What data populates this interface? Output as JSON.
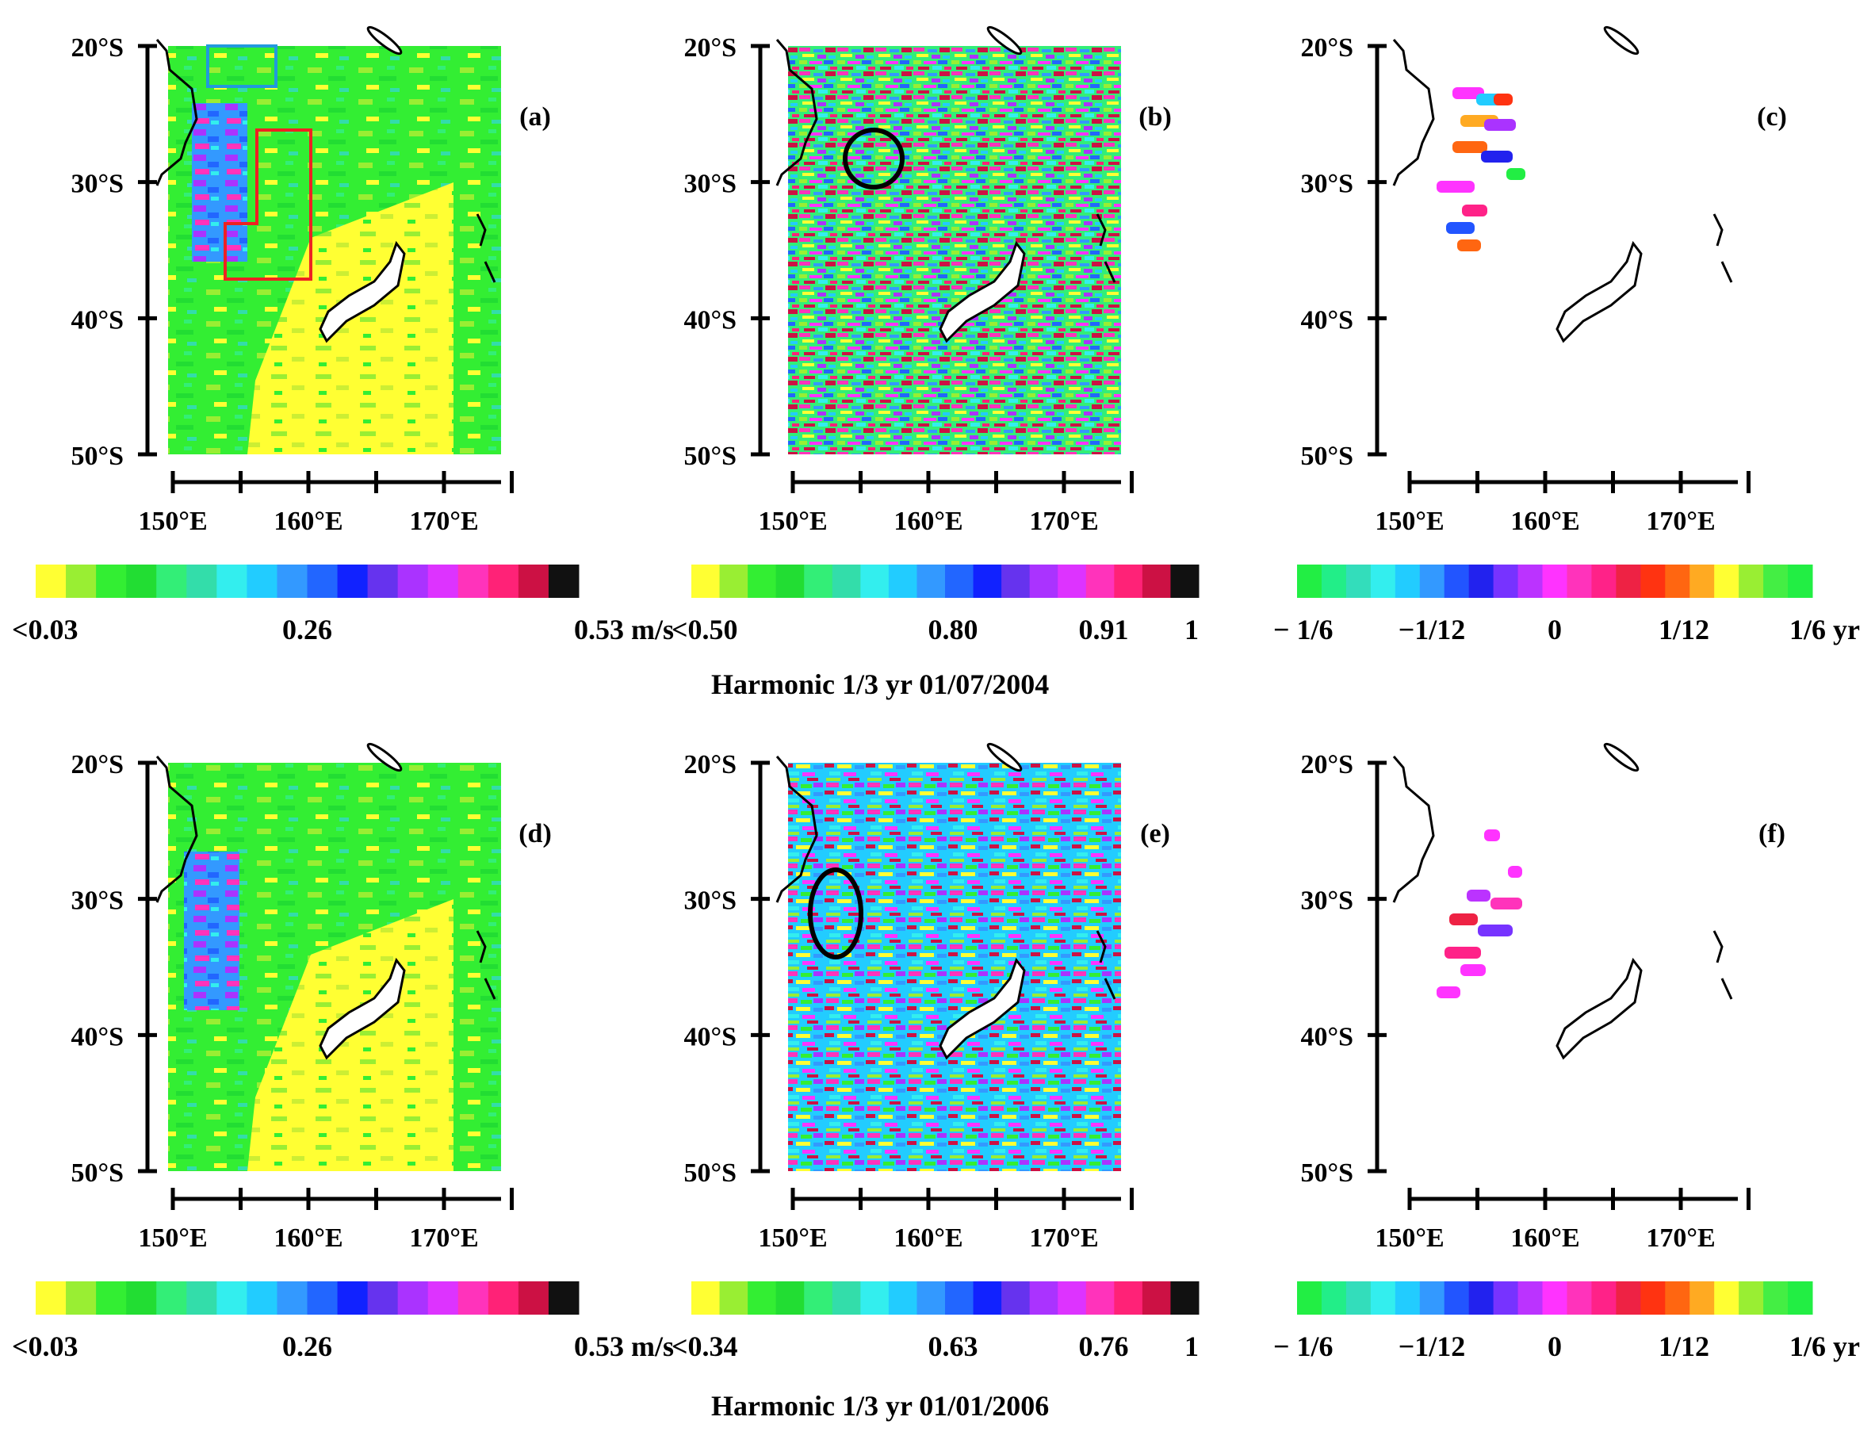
{
  "figure": {
    "rows": [
      {
        "caption": "Harmonic 1/3 yr    01/07/2004",
        "panels": [
          {
            "tag": "(a)",
            "type": "amplitude"
          },
          {
            "tag": "(b)",
            "type": "correlation"
          },
          {
            "tag": "(c)",
            "type": "phase"
          }
        ],
        "colorbars": [
          {
            "labels": [
              "<0.03",
              "0.26",
              "0.53 m/s"
            ]
          },
          {
            "labels": [
              "<0.50",
              "0.80",
              "0.91",
              "1"
            ]
          },
          {
            "labels": [
              "− 1/6",
              "−1/12",
              "0",
              "1/12",
              "1/6 yr"
            ]
          }
        ]
      },
      {
        "caption": "Harmonic 1/3 yr    01/01/2006",
        "panels": [
          {
            "tag": "(d)",
            "type": "amplitude"
          },
          {
            "tag": "(e)",
            "type": "correlation"
          },
          {
            "tag": "(f)",
            "type": "phase"
          }
        ],
        "colorbars": [
          {
            "labels": [
              "<0.03",
              "0.26",
              "0.53 m/s"
            ]
          },
          {
            "labels": [
              "<0.34",
              "0.63",
              "0.76",
              "1"
            ]
          },
          {
            "labels": [
              "− 1/6",
              "−1/12",
              "0",
              "1/12",
              "1/6 yr"
            ]
          }
        ]
      }
    ],
    "lat_ticks": [
      "20°S",
      "30°S",
      "40°S",
      "50°S"
    ],
    "lon_ticks": [
      "150°E",
      "160°E",
      "170°E"
    ],
    "palettes": {
      "amplitude": [
        "#ffff33",
        "#99ee33",
        "#33ee33",
        "#22dd33",
        "#33ee77",
        "#33ddaa",
        "#33eeee",
        "#22ccff",
        "#3399ff",
        "#2266ff",
        "#1122ff",
        "#6633ee",
        "#aa33ff",
        "#dd33ff",
        "#ff33bb",
        "#ff2277",
        "#cc1144",
        "#111111"
      ],
      "phase": [
        "#22ee44",
        "#22ee88",
        "#33ddbb",
        "#33eeee",
        "#22ccff",
        "#3399ff",
        "#2255ff",
        "#2222ee",
        "#7733ff",
        "#bb33ff",
        "#ff33ff",
        "#ff33bb",
        "#ff2288",
        "#ee2244",
        "#ff3311",
        "#ff6611",
        "#ffaa22",
        "#ffff33",
        "#99ee33",
        "#44ee44",
        "#22ee44"
      ]
    }
  }
}
